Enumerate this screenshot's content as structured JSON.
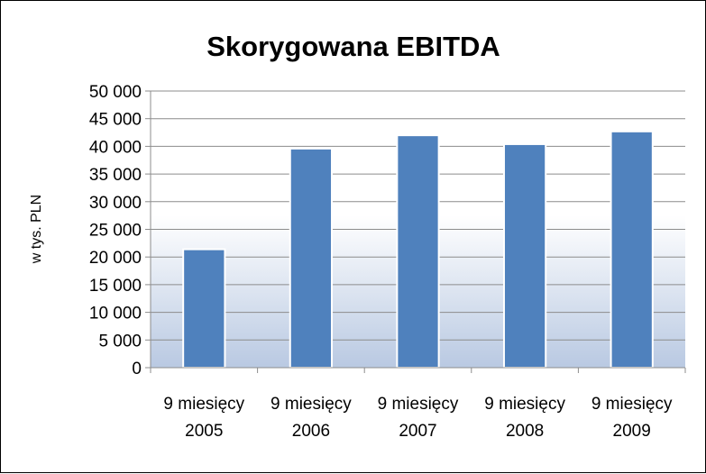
{
  "chart_data": {
    "type": "bar",
    "title": "Skorygowana EBITDA",
    "ylabel": "w tys. PLN",
    "xlabel": "",
    "categories": [
      [
        "9 miesięcy",
        "2005"
      ],
      [
        "9 miesięcy",
        "2006"
      ],
      [
        "9 miesięcy",
        "2007"
      ],
      [
        "9 miesięcy",
        "2008"
      ],
      [
        "9 miesięcy",
        "2009"
      ]
    ],
    "values": [
      21400,
      39600,
      42000,
      40400,
      42700
    ],
    "ylim": [
      0,
      50000
    ],
    "y_ticks": [
      {
        "value": 0,
        "label": "0"
      },
      {
        "value": 5000,
        "label": "5 000"
      },
      {
        "value": 10000,
        "label": "10 000"
      },
      {
        "value": 15000,
        "label": "15 000"
      },
      {
        "value": 20000,
        "label": "20 000"
      },
      {
        "value": 25000,
        "label": "25 000"
      },
      {
        "value": 30000,
        "label": "30 000"
      },
      {
        "value": 35000,
        "label": "35 000"
      },
      {
        "value": 40000,
        "label": "40 000"
      },
      {
        "value": 45000,
        "label": "45 000"
      },
      {
        "value": 50000,
        "label": "50 000"
      }
    ],
    "grid": true,
    "legend": "none",
    "colors": {
      "bar_fill": "#4f81bd",
      "bar_stroke": "#ffffff",
      "grid": "#8c8c8c",
      "axis": "#8c8c8c",
      "plot_gradient_bottom": "#b9c9e2"
    }
  }
}
